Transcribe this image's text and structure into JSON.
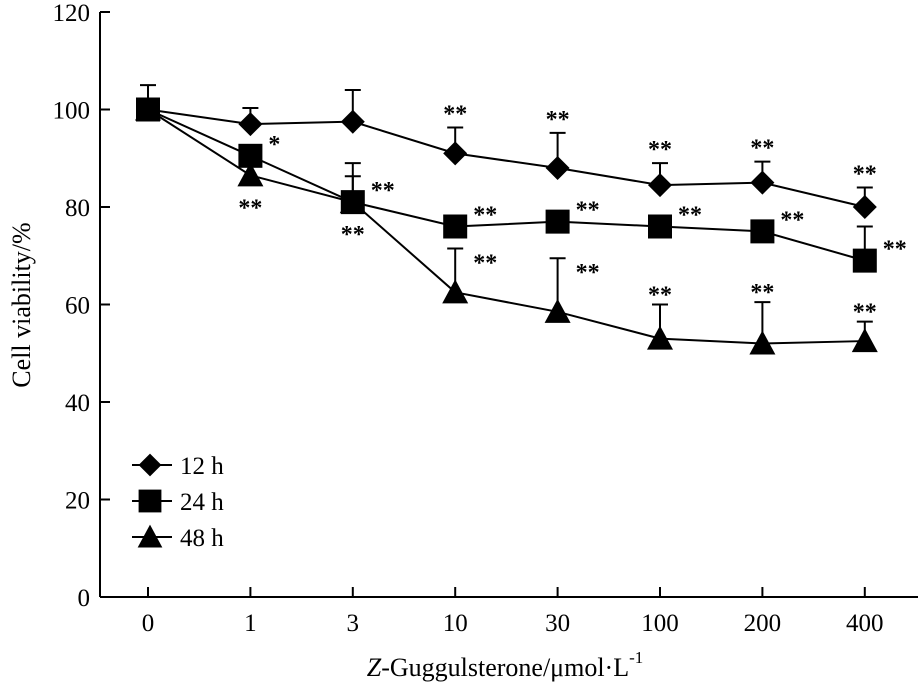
{
  "chart_data": {
    "type": "line",
    "xlabel": {
      "italic": "Z",
      "text": "-Guggulsterone/μmol·L",
      "sup": "-1"
    },
    "ylabel": "Cell viability/%",
    "ylim": [
      0,
      120
    ],
    "yticks": [
      0,
      20,
      40,
      60,
      80,
      100,
      120
    ],
    "categories": [
      "0",
      "1",
      "3",
      "10",
      "30",
      "100",
      "200",
      "400"
    ],
    "grid": false,
    "legend_position": "bottom-left",
    "series": [
      {
        "name": "12 h",
        "marker": "diamond",
        "color": "#000000",
        "values": [
          100,
          97,
          97.5,
          91,
          88,
          84.5,
          85,
          80
        ],
        "error": [
          5,
          3.3,
          6.5,
          5.3,
          7.2,
          4.5,
          4.3,
          4
        ],
        "significance": [
          "",
          "",
          "",
          "**",
          "**",
          "**",
          "**",
          "**"
        ]
      },
      {
        "name": "24 h",
        "marker": "square",
        "color": "#000000",
        "values": [
          100,
          90.5,
          81,
          76,
          77,
          76,
          75,
          69
        ],
        "error": [
          0,
          0,
          8,
          0,
          0,
          0,
          0,
          7
        ],
        "significance": [
          "",
          "*",
          "**",
          "**",
          "**",
          "**",
          "**",
          "**"
        ]
      },
      {
        "name": "48 h",
        "marker": "triangle",
        "color": "#000000",
        "values": [
          100,
          86.5,
          81,
          62.5,
          58.5,
          53,
          52,
          52.5
        ],
        "error": [
          0,
          0,
          5.3,
          9,
          11,
          7,
          8.5,
          4
        ],
        "significance": [
          "",
          "**",
          "**",
          "**",
          "**",
          "**",
          "**",
          "**"
        ]
      }
    ]
  }
}
